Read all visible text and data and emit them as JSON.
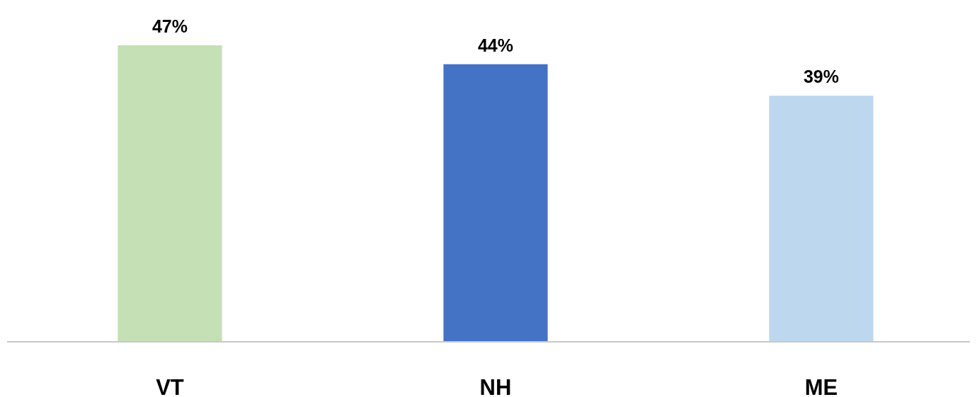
{
  "chart_data": {
    "type": "bar",
    "categories": [
      "VT",
      "NH",
      "ME"
    ],
    "values": [
      47,
      44,
      39
    ],
    "colors": [
      "#c5e0b4",
      "#4472c4",
      "#bdd7ee"
    ],
    "value_labels": [
      "47%",
      "44%",
      "39%"
    ],
    "relative": false
  }
}
